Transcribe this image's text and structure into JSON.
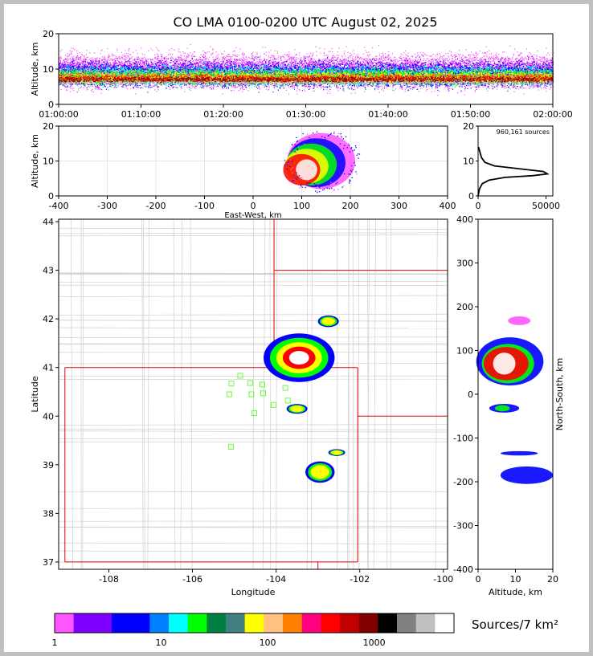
{
  "title": "CO LMA 0100-0200 UTC August 02, 2025",
  "chart_data": [
    {
      "id": "time-height",
      "type": "heatmap",
      "ylabel": "Altitude, km",
      "ylim": [
        0,
        20
      ],
      "yticks": [
        0,
        10,
        20
      ],
      "xticks": [
        "01:00:00",
        "01:10:00",
        "01:20:00",
        "01:30:00",
        "01:40:00",
        "01:50:00",
        "02:00:00"
      ],
      "bands": [
        {
          "from": 2.0,
          "to": 17.5,
          "color": "#ff55ff"
        },
        {
          "from": 3.0,
          "to": 15.0,
          "color": "#8000ff"
        },
        {
          "from": 3.5,
          "to": 13.5,
          "color": "#0000ff"
        },
        {
          "from": 4.0,
          "to": 12.5,
          "color": "#00ffff"
        },
        {
          "from": 4.5,
          "to": 11.5,
          "color": "#00ff00"
        },
        {
          "from": 5.0,
          "to": 10.5,
          "color": "#ffff00"
        },
        {
          "from": 5.5,
          "to": 9.8,
          "color": "#ff8000"
        },
        {
          "from": 5.8,
          "to": 9.0,
          "color": "#ff0000"
        },
        {
          "from": 6.0,
          "to": 8.3,
          "color": "#8b0000"
        },
        {
          "from": 5.9,
          "to": 6.7,
          "color": "#c8c8c8"
        }
      ]
    },
    {
      "id": "ew-altitude",
      "type": "heatmap",
      "xlabel": "East-West, km",
      "ylabel": "Altitude, km",
      "xlim": [
        -400,
        400
      ],
      "ylim": [
        0,
        20
      ],
      "xticks": [
        -400,
        -300,
        -200,
        -100,
        0,
        100,
        200,
        300,
        400
      ],
      "yticks": [
        0,
        10,
        20
      ],
      "blobs": [
        {
          "x": 140,
          "z": 10,
          "rx": 70,
          "rz": 8,
          "color": "#ff55ff"
        },
        {
          "x": 130,
          "z": 9.5,
          "rx": 60,
          "rz": 7,
          "color": "#0000ff"
        },
        {
          "x": 120,
          "z": 9,
          "rx": 52,
          "rz": 6,
          "color": "#00ff00"
        },
        {
          "x": 110,
          "z": 8.5,
          "rx": 45,
          "rz": 5,
          "color": "#ffff00"
        },
        {
          "x": 100,
          "z": 7.5,
          "rx": 38,
          "rz": 4.5,
          "color": "#ff0000"
        },
        {
          "x": 110,
          "z": 7.5,
          "rx": 22,
          "rz": 3,
          "color": "#ffffff"
        }
      ]
    },
    {
      "id": "altitude-histogram",
      "type": "line",
      "annotation": "960,161 sources",
      "xlim": [
        0,
        55000
      ],
      "ylim": [
        0,
        20
      ],
      "xticks": [
        0,
        50000
      ],
      "yticks": [
        0,
        10,
        20
      ],
      "x": [
        0,
        1000,
        3000,
        8000,
        20000,
        40000,
        51000,
        48000,
        30000,
        12000,
        5000,
        2500,
        1000,
        300
      ],
      "y": [
        0,
        2,
        3.5,
        4.5,
        5.3,
        5.8,
        6.3,
        7.0,
        7.8,
        8.6,
        9.6,
        11,
        13,
        14
      ]
    },
    {
      "id": "lat-lon-map",
      "type": "heatmap",
      "xlabel": "Longitude",
      "ylabel": "Latitude",
      "xlim": [
        -109.2,
        -99.9
      ],
      "ylim": [
        36.85,
        44.05
      ],
      "xticks": [
        -108,
        -106,
        -104,
        -102,
        -100
      ],
      "yticks": [
        37,
        38,
        39,
        40,
        41,
        42,
        43,
        44
      ],
      "stations": [
        {
          "lon": -104.86,
          "lat": 40.83
        },
        {
          "lon": -105.07,
          "lat": 40.67
        },
        {
          "lon": -104.62,
          "lat": 40.68
        },
        {
          "lon": -104.33,
          "lat": 40.65
        },
        {
          "lon": -103.78,
          "lat": 40.58
        },
        {
          "lon": -105.12,
          "lat": 40.45
        },
        {
          "lon": -104.59,
          "lat": 40.45
        },
        {
          "lon": -104.31,
          "lat": 40.47
        },
        {
          "lon": -103.72,
          "lat": 40.32
        },
        {
          "lon": -104.06,
          "lat": 40.23
        },
        {
          "lon": -104.52,
          "lat": 40.06
        },
        {
          "lon": -105.08,
          "lat": 39.37
        }
      ],
      "storms": [
        {
          "lon": -103.45,
          "lat": 41.2,
          "rx": 0.85,
          "ry": 0.5,
          "core": true
        },
        {
          "lon": -102.75,
          "lat": 41.95,
          "rx": 0.25,
          "ry": 0.12,
          "core": false
        },
        {
          "lon": -103.5,
          "lat": 40.15,
          "rx": 0.25,
          "ry": 0.1,
          "core": false
        },
        {
          "lon": -102.95,
          "lat": 38.85,
          "rx": 0.35,
          "ry": 0.22,
          "core": false
        },
        {
          "lon": -102.55,
          "lat": 39.25,
          "rx": 0.2,
          "ry": 0.07,
          "core": false
        }
      ]
    },
    {
      "id": "ns-altitude",
      "type": "heatmap",
      "xlabel": "Altitude, km",
      "ylabel": "North-South, km",
      "xlim": [
        0,
        20
      ],
      "ylim": [
        -400,
        400
      ],
      "xticks": [
        0,
        10,
        20
      ],
      "yticks": [
        -400,
        -300,
        -200,
        -100,
        0,
        100,
        200,
        300,
        400
      ],
      "blobs": [
        {
          "z": 8.5,
          "y": 75,
          "rz": 9,
          "ry": 55,
          "color": "#0000ff"
        },
        {
          "z": 8,
          "y": 70,
          "rz": 7,
          "ry": 45,
          "color": "#00ff00"
        },
        {
          "z": 7.5,
          "y": 70,
          "rz": 6,
          "ry": 38,
          "color": "#ff0000"
        },
        {
          "z": 7,
          "y": 70,
          "rz": 3,
          "ry": 25,
          "color": "#ffffff"
        },
        {
          "z": 7,
          "y": -32,
          "rz": 4,
          "ry": 10,
          "color": "#0000ff"
        },
        {
          "z": 6.5,
          "y": -32,
          "rz": 2,
          "ry": 7,
          "color": "#00ff00"
        },
        {
          "z": 11,
          "y": -135,
          "rz": 5,
          "ry": 5,
          "color": "#0000ff"
        },
        {
          "z": 13,
          "y": -185,
          "rz": 7,
          "ry": 20,
          "color": "#0000ff"
        },
        {
          "z": 11,
          "y": 168,
          "rz": 3,
          "ry": 10,
          "color": "#ff55ff"
        }
      ]
    }
  ],
  "colorbar": {
    "label": "Sources/7 km²",
    "ticks": [
      {
        "label": "1",
        "value": 1
      },
      {
        "label": "10",
        "value": 10
      },
      {
        "label": "100",
        "value": 100
      },
      {
        "label": "1000",
        "value": 1000
      }
    ],
    "colors": [
      "#ff55ff",
      "#8000ff",
      "#8000ff",
      "#0000ff",
      "#0000ff",
      "#0080ff",
      "#00ffff",
      "#00ff00",
      "#008040",
      "#408080",
      "#ffff00",
      "#ffc080",
      "#ff8000",
      "#ff0080",
      "#ff0000",
      "#c00000",
      "#800000",
      "#000000",
      "#808080",
      "#c0c0c0",
      "#ffffff"
    ]
  }
}
